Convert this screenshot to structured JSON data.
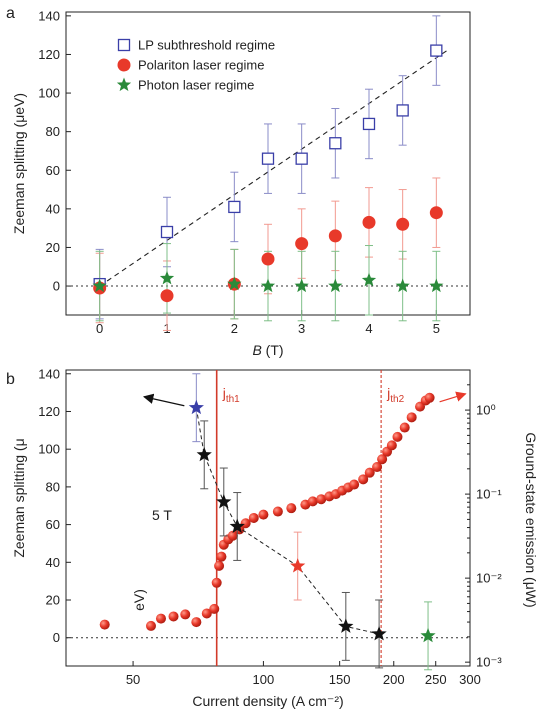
{
  "chart_data": [
    {
      "panel": "a",
      "type": "scatter",
      "xlabel_italic": "B",
      "xlabel_rest": " (T)",
      "ylabel": "Zeeman splitting (μeV)",
      "xlim": [
        -0.5,
        5.5
      ],
      "ylim": [
        -15,
        142
      ],
      "xticks": [
        0,
        1,
        2,
        3,
        4,
        5
      ],
      "yticks": [
        0,
        20,
        40,
        60,
        80,
        100,
        120,
        140
      ],
      "legend_position": "top-left",
      "series": [
        {
          "name": "LP subthreshold regime",
          "marker": "open-square",
          "color": "#3a3fa8",
          "x": [
            0,
            1,
            2,
            2.5,
            3,
            3.5,
            4,
            4.5,
            5
          ],
          "y": [
            1,
            28,
            41,
            66,
            66,
            74,
            84,
            91,
            122
          ],
          "err": [
            18,
            18,
            18,
            18,
            18,
            18,
            18,
            18,
            18
          ]
        },
        {
          "name": "Polariton laser regime",
          "marker": "filled-circle",
          "color": "#e8392a",
          "x": [
            0,
            1,
            2,
            2.5,
            3,
            3.5,
            4,
            4.5,
            5
          ],
          "y": [
            -1,
            -5,
            1,
            14,
            22,
            26,
            33,
            32,
            38
          ],
          "err": [
            18,
            18,
            18,
            18,
            18,
            18,
            18,
            18,
            18
          ]
        },
        {
          "name": "Photon laser regime",
          "marker": "star",
          "color": "#2a8a3a",
          "x": [
            0,
            1,
            2,
            2.5,
            3,
            3.5,
            4,
            4.5,
            5
          ],
          "y": [
            0,
            4,
            1,
            0,
            0,
            0,
            3,
            0,
            0
          ],
          "err": [
            18,
            18,
            18,
            18,
            18,
            18,
            18,
            18,
            18
          ]
        }
      ],
      "fit_line": {
        "x": [
          0,
          5.2
        ],
        "y": [
          0,
          123
        ]
      }
    },
    {
      "panel": "b",
      "type": "scatter",
      "xlabel": "Current density (A cm⁻²)",
      "ylabel_left": "Zeeman splitting (μ",
      "ylabel_right": "Ground-state emission (μW)",
      "x_scale": "log",
      "y_right_scale": "log",
      "xlim": [
        35,
        300
      ],
      "ylim_left": [
        -15,
        142
      ],
      "ylim_right": [
        0.0009,
        3
      ],
      "xticks": [
        50,
        100,
        150,
        200,
        250,
        300
      ],
      "yticks_left": [
        0,
        20,
        40,
        60,
        80,
        100,
        120,
        140
      ],
      "yticks_right": [
        "10⁰",
        "10⁻¹",
        "10⁻²",
        "10⁻³"
      ],
      "yticks_right_values": [
        1,
        0.1,
        0.01,
        0.001
      ],
      "annotation_field": "5 T",
      "annotation_unit_fragment": "eV)",
      "jth1": {
        "x": 78,
        "label_main": "j",
        "label_sub": "th1",
        "color": "#d23a2a"
      },
      "jth2": {
        "x": 187,
        "label_main": "j",
        "label_sub": "th2",
        "color": "#d23a2a"
      },
      "zeeman_series": {
        "x": [
          70,
          73,
          81,
          87,
          120,
          155,
          185,
          240
        ],
        "y": [
          122,
          97,
          72,
          59,
          38,
          6,
          2,
          1
        ],
        "err": [
          18,
          18,
          18,
          18,
          18,
          18,
          18,
          18
        ],
        "colors": [
          "#3a3fa8",
          "#111111",
          "#111111",
          "#111111",
          "#e8392a",
          "#111111",
          "#111111",
          "#2a8a3a"
        ]
      },
      "emission_series": {
        "x": [
          43,
          55,
          58,
          62,
          66,
          70,
          74,
          77,
          78,
          79,
          80,
          81,
          83,
          85,
          88,
          91,
          95,
          100,
          108,
          116,
          125,
          130,
          136,
          142,
          147,
          152,
          157,
          162,
          170,
          176,
          183,
          188,
          193,
          198,
          204,
          212,
          220,
          230,
          237,
          242
        ],
        "y": [
          0.0028,
          0.0027,
          0.0033,
          0.0035,
          0.0037,
          0.003,
          0.0038,
          0.0043,
          0.0088,
          0.014,
          0.018,
          0.025,
          0.029,
          0.032,
          0.038,
          0.045,
          0.052,
          0.057,
          0.062,
          0.068,
          0.075,
          0.082,
          0.087,
          0.094,
          0.1,
          0.11,
          0.12,
          0.13,
          0.15,
          0.18,
          0.21,
          0.26,
          0.32,
          0.38,
          0.48,
          0.62,
          0.82,
          1.1,
          1.3,
          1.4
        ]
      }
    }
  ],
  "panel_a_label": "a",
  "panel_b_label": "b"
}
